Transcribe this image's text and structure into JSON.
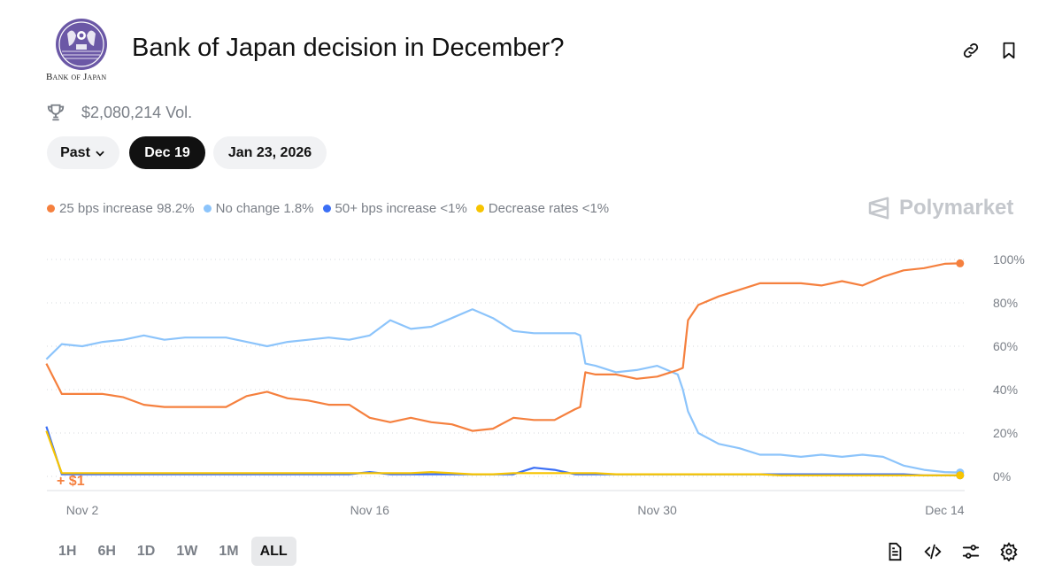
{
  "header": {
    "logo_text": "Bank of Japan",
    "title": "Bank of Japan decision in December?",
    "volume": "$2,080,214 Vol.",
    "icons": [
      "link-icon",
      "bookmark-icon",
      "trophy-icon"
    ]
  },
  "date_pills": [
    {
      "label": "Past",
      "has_dropdown": true,
      "active": false
    },
    {
      "label": "Dec 19",
      "active": true
    },
    {
      "label": "Jan 23, 2026",
      "active": false
    }
  ],
  "legend": [
    {
      "label": "25 bps increase 98.2%",
      "color": "#f5803e"
    },
    {
      "label": "No change 1.8%",
      "color": "#8cc4fb"
    },
    {
      "label": "50+ bps increase <1%",
      "color": "#3b6ff5"
    },
    {
      "label": "Decrease rates <1%",
      "color": "#f7c400"
    }
  ],
  "watermark": "Polymarket",
  "delta_label": "+ $1",
  "time_ranges": [
    {
      "label": "1H",
      "active": false
    },
    {
      "label": "6H",
      "active": false
    },
    {
      "label": "1D",
      "active": false
    },
    {
      "label": "1W",
      "active": false
    },
    {
      "label": "1M",
      "active": false
    },
    {
      "label": "ALL",
      "active": true
    }
  ],
  "bottom_icons": [
    "document-icon",
    "code-icon",
    "sliders-icon",
    "gear-icon"
  ],
  "chart_data": {
    "type": "line",
    "ylim": [
      0,
      100
    ],
    "y_ticks": [
      "0%",
      "20%",
      "40%",
      "60%",
      "80%",
      "100%"
    ],
    "x_ticks": [
      {
        "label": "Nov 2",
        "date": "2025-11-02"
      },
      {
        "label": "Nov 16",
        "date": "2025-11-16"
      },
      {
        "label": "Nov 30",
        "date": "2025-11-30"
      },
      {
        "label": "Dec 14",
        "date": "2025-12-14"
      }
    ],
    "grid": "horizontal dotted",
    "y_axis_side": "right",
    "x": [
      "2025-10-31T06:00",
      "2025-11-01",
      "2025-11-02",
      "2025-11-03",
      "2025-11-04",
      "2025-11-05",
      "2025-11-06",
      "2025-11-07",
      "2025-11-08",
      "2025-11-09",
      "2025-11-10",
      "2025-11-11",
      "2025-11-12",
      "2025-11-13",
      "2025-11-14",
      "2025-11-15",
      "2025-11-16",
      "2025-11-17",
      "2025-11-18",
      "2025-11-19",
      "2025-11-20",
      "2025-11-21",
      "2025-11-22",
      "2025-11-23",
      "2025-11-24",
      "2025-11-25",
      "2025-11-26",
      "2025-11-26T06:00",
      "2025-11-26T12:00",
      "2025-11-27",
      "2025-11-28",
      "2025-11-29",
      "2025-11-30",
      "2025-12-01",
      "2025-12-01T06:00",
      "2025-12-01T12:00",
      "2025-12-02",
      "2025-12-03",
      "2025-12-04",
      "2025-12-05",
      "2025-12-06",
      "2025-12-07",
      "2025-12-08",
      "2025-12-09",
      "2025-12-10",
      "2025-12-11",
      "2025-12-12",
      "2025-12-13",
      "2025-12-14",
      "2025-12-14T18:00"
    ],
    "series": [
      {
        "name": "25 bps increase",
        "color": "#f5803e",
        "values": [
          52,
          38,
          38,
          38,
          36.5,
          33,
          32,
          32,
          32,
          32,
          37,
          39,
          36,
          35,
          33,
          33,
          27,
          25,
          27,
          25,
          24,
          21,
          22,
          27,
          26,
          26,
          31,
          32,
          48,
          47,
          47,
          45,
          46,
          49,
          50,
          72,
          79,
          83,
          86,
          89,
          89,
          89,
          88,
          90,
          88,
          92,
          95,
          96,
          98,
          98.2
        ]
      },
      {
        "name": "No change",
        "color": "#8cc4fb",
        "values": [
          54,
          61,
          60,
          62,
          63,
          65,
          63,
          64,
          64,
          64,
          62,
          60,
          62,
          63,
          64,
          63,
          65,
          72,
          68,
          69,
          73,
          77,
          73,
          67,
          66,
          66,
          66,
          65,
          52,
          51,
          48,
          49,
          51,
          47,
          40,
          30,
          20,
          15,
          13,
          10,
          10,
          9,
          10,
          9,
          10,
          9,
          5,
          3,
          2,
          1.8
        ]
      },
      {
        "name": "50+ bps increase",
        "color": "#3b6ff5",
        "values": [
          23,
          1,
          1,
          1,
          1,
          1,
          1,
          1,
          1,
          1,
          1,
          1,
          1,
          1,
          1,
          1,
          2,
          1,
          1,
          1,
          1,
          1,
          1,
          1,
          4,
          3,
          1,
          1,
          1,
          1,
          1,
          1,
          1,
          1,
          1,
          1,
          1,
          1,
          1,
          1,
          1,
          1,
          1,
          1,
          1,
          1,
          1,
          0.5,
          0.5,
          0.5
        ]
      },
      {
        "name": "Decrease rates",
        "color": "#f7c400",
        "values": [
          21,
          1.5,
          1.5,
          1.5,
          1.5,
          1.5,
          1.5,
          1.5,
          1.5,
          1.5,
          1.5,
          1.5,
          1.5,
          1.5,
          1.5,
          1.5,
          1.5,
          1.5,
          1.5,
          2,
          1.5,
          1,
          1,
          1.5,
          1.5,
          1.5,
          1.5,
          1.5,
          1.5,
          1.5,
          1,
          1,
          1,
          1,
          1,
          1,
          1,
          1,
          1,
          1,
          0.5,
          0.5,
          0.5,
          0.5,
          0.5,
          0.5,
          0.5,
          0.5,
          0.5,
          0.5
        ]
      }
    ]
  }
}
